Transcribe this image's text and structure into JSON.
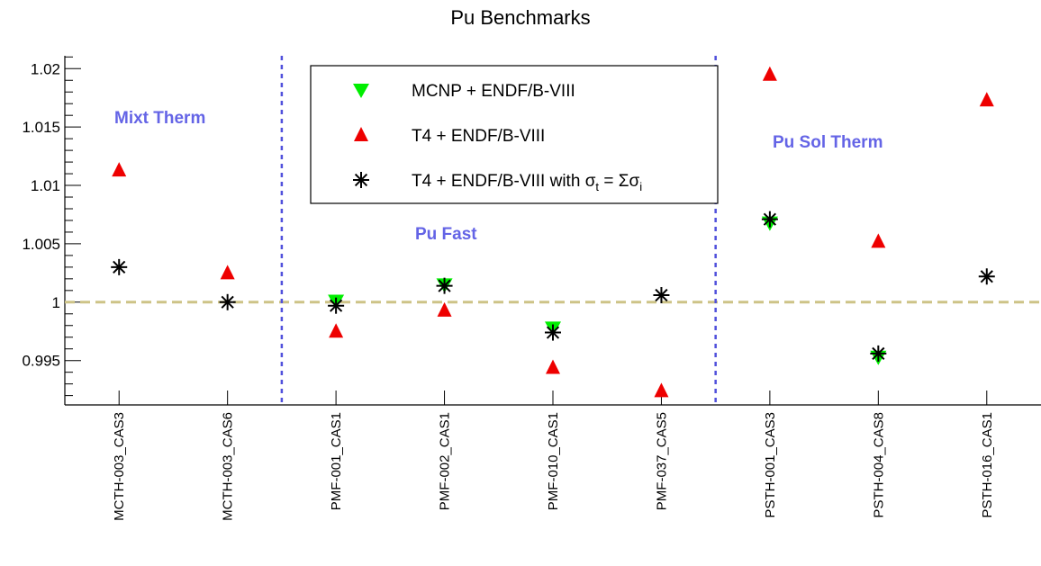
{
  "chart_data": {
    "type": "scatter",
    "title": "Pu Benchmarks",
    "xlabel": "",
    "ylabel": "",
    "categories": [
      "MCTH-003_CAS3",
      "MCTH-003_CAS6",
      "PMF-001_CAS1",
      "PMF-002_CAS1",
      "PMF-010_CAS1",
      "PMF-037_CAS5",
      "PSTH-001_CAS3",
      "PSTH-004_CAS8",
      "PSTH-016_CAS1"
    ],
    "ylim": [
      0.9912,
      1.0211
    ],
    "yticks": [
      "0.995",
      "1",
      "1.005",
      "1.01",
      "1.015",
      "1.02"
    ],
    "reference_line": 1.0,
    "series": [
      {
        "name": "MCNP + ENDF/B-VIII",
        "marker": "triangle-down",
        "color": "#00ee00",
        "values": [
          null,
          null,
          1.0001,
          1.0015,
          0.9978,
          null,
          1.0068,
          0.9953,
          null
        ]
      },
      {
        "name": "T4 + ENDF/B-VIII",
        "marker": "triangle-up",
        "color": "#ee0000",
        "values": [
          1.0113,
          1.0025,
          0.9975,
          0.9993,
          0.9944,
          0.9924,
          1.0195,
          1.0052,
          1.0173
        ]
      },
      {
        "name": "T4 + ENDF/B-VIII with σt = Σσi",
        "marker": "asterisk",
        "color": "#000000",
        "values": [
          1.003,
          1.0,
          0.9997,
          1.0014,
          0.9974,
          1.0006,
          1.0071,
          0.9956,
          1.0022
        ]
      }
    ],
    "regions": [
      {
        "label": "Mixt Therm"
      },
      {
        "label": "Pu Fast"
      },
      {
        "label": "Pu Sol Therm"
      }
    ],
    "legend": {
      "placement": "top-center",
      "entries": [
        {
          "text": "MCNP + ENDF/B-VIII"
        },
        {
          "text": "T4 + ENDF/B-VIII"
        },
        {
          "text_main": "T4 + ENDF/B-VIII with ",
          "sym1": "σ",
          "sub1": "t",
          "eq": " = Σ",
          "sym2": "σ",
          "sub2": "i"
        }
      ]
    },
    "colors": {
      "region_text": "#6464e6",
      "divider": "#5050dc",
      "reference": "#cdc387"
    }
  }
}
